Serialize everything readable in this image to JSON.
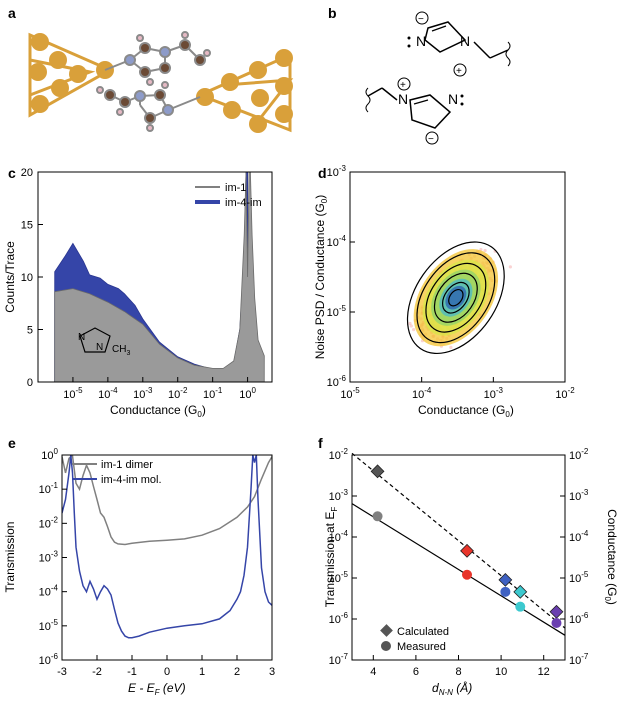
{
  "panels": {
    "a": {
      "label": "a"
    },
    "b": {
      "label": "b"
    },
    "c": {
      "label": "c"
    },
    "d": {
      "label": "d"
    },
    "e": {
      "label": "e"
    },
    "f": {
      "label": "f"
    }
  },
  "colors": {
    "gold": "#d9a03a",
    "carbon": "#6b4a35",
    "nitrogen": "#8d9bc9",
    "hydrogen": "#e6b9c4",
    "grey_fill": "#9a9a9a",
    "blue": "#3545a8",
    "grey_line": "#808080",
    "red": "#e8352b",
    "blue_point": "#3f61c2",
    "cyan": "#3cc9cf",
    "purple": "#6a3fb0",
    "dark_grey": "#555555"
  },
  "chart_data": [
    {
      "panel": "c",
      "type": "area",
      "xlabel": "Conductance (G",
      "xlabel_sub": "0",
      "xlabel_tail": ")",
      "ylabel": "Counts/Trace",
      "x_log": true,
      "xlim": [
        1e-06,
        5
      ],
      "ylim": [
        0,
        20
      ],
      "yticks": [
        "0",
        "5",
        "10",
        "15",
        "20"
      ],
      "xticks": [
        {
          "base": "10",
          "exp": "-5",
          "v": 1e-05
        },
        {
          "base": "10",
          "exp": "-4",
          "v": 0.0001
        },
        {
          "base": "10",
          "exp": "-3",
          "v": 0.001
        },
        {
          "base": "10",
          "exp": "-2",
          "v": 0.01
        },
        {
          "base": "10",
          "exp": "-1",
          "v": 0.1
        },
        {
          "base": "10",
          "exp": "0",
          "v": 1
        }
      ],
      "series": [
        {
          "name": "im-1",
          "color": "#9a9a9a",
          "x": [
            3e-06,
            1e-05,
            3e-05,
            0.0001,
            0.0003,
            0.001,
            0.003,
            0.01,
            0.03,
            0.1,
            0.2,
            0.4,
            0.6,
            0.8,
            0.9,
            1.0,
            1.1,
            1.2,
            1.35,
            1.6,
            2.0,
            3.0
          ],
          "y": [
            8.6,
            8.9,
            8.4,
            7.6,
            6.7,
            5.5,
            3.6,
            2.3,
            1.6,
            1.3,
            1.3,
            2.0,
            5.0,
            14.0,
            20,
            10.0,
            20,
            20,
            14.0,
            8.0,
            4.0,
            2.5
          ]
        },
        {
          "name": "im-4-im",
          "color": "#3545a8",
          "x": [
            3e-06,
            6e-06,
            1e-05,
            2e-05,
            3e-05,
            6e-05,
            0.0001,
            0.0002,
            0.0003,
            0.0006,
            0.001,
            0.003,
            0.01,
            0.03,
            0.1,
            0.2,
            0.3,
            0.4,
            0.6,
            0.8,
            0.9,
            1.0
          ],
          "y": [
            10.5,
            12.0,
            13.2,
            11.5,
            10.2,
            9.9,
            9.3,
            8.9,
            8.4,
            7.3,
            6.0,
            3.8,
            2.4,
            1.7,
            1.2,
            1.1,
            1.2,
            1.8,
            5.0,
            12.0,
            20,
            20
          ]
        }
      ],
      "inset_label": "N",
      "inset_label2": "N",
      "inset_group": "CH",
      "inset_group_sub": "3"
    },
    {
      "panel": "d",
      "type": "heatmap",
      "xlabel": "Conductance (G",
      "xlabel_sub": "0",
      "xlabel_tail": ")",
      "ylabel": "Noise PSD / Conductance (G",
      "ylabel_sub": "0",
      "ylabel_tail": ")",
      "x_log": true,
      "y_log": true,
      "xlim": [
        1e-05,
        0.01
      ],
      "ylim": [
        1e-06,
        0.001
      ],
      "xticks": [
        {
          "base": "10",
          "exp": "-5"
        },
        {
          "base": "10",
          "exp": "-4"
        },
        {
          "base": "10",
          "exp": "-3"
        },
        {
          "base": "10",
          "exp": "-2"
        }
      ],
      "yticks": [
        {
          "base": "10",
          "exp": "-6"
        },
        {
          "base": "10",
          "exp": "-5"
        },
        {
          "base": "10",
          "exp": "-4"
        },
        {
          "base": "10",
          "exp": "-3"
        }
      ],
      "center": [
        0.0003,
        1.6e-05
      ],
      "contour_levels": 5
    },
    {
      "panel": "e",
      "type": "line",
      "xlabel": "E - E",
      "xlabel_sub": "F",
      "xlabel_tail": " (eV)",
      "ylabel": "Transmission",
      "y_log": true,
      "xlim": [
        -3,
        3
      ],
      "ylim": [
        1e-06,
        1
      ],
      "xticks": [
        "-3",
        "-2",
        "-1",
        "0",
        "1",
        "2",
        "3"
      ],
      "yticks": [
        {
          "base": "10",
          "exp": "-6"
        },
        {
          "base": "10",
          "exp": "-5"
        },
        {
          "base": "10",
          "exp": "-4"
        },
        {
          "base": "10",
          "exp": "-3"
        },
        {
          "base": "10",
          "exp": "-2"
        },
        {
          "base": "10",
          "exp": "-1"
        },
        {
          "base": "10",
          "exp": "0"
        }
      ],
      "series": [
        {
          "name": "im-1 dimer",
          "color": "#808080",
          "x": [
            -3.0,
            -2.9,
            -2.8,
            -2.7,
            -2.6,
            -2.5,
            -2.4,
            -2.3,
            -2.2,
            -2.1,
            -2.0,
            -1.9,
            -1.8,
            -1.7,
            -1.6,
            -1.5,
            -1.4,
            -1.2,
            -1.0,
            -0.5,
            0.0,
            0.5,
            1.0,
            1.5,
            2.0,
            2.3,
            2.5,
            2.7,
            2.9,
            3.0
          ],
          "y": [
            0.9,
            0.3,
            0.8,
            0.95,
            0.15,
            0.1,
            0.25,
            0.5,
            0.3,
            0.12,
            0.05,
            0.02,
            0.015,
            0.008,
            0.004,
            0.0028,
            0.0025,
            0.0024,
            0.0026,
            0.003,
            0.0032,
            0.0035,
            0.0045,
            0.007,
            0.015,
            0.03,
            0.06,
            0.2,
            0.6,
            0.9
          ]
        },
        {
          "name": "im-4-im mol.",
          "color": "#3545a8",
          "x": [
            -3.0,
            -2.9,
            -2.8,
            -2.75,
            -2.7,
            -2.65,
            -2.6,
            -2.5,
            -2.4,
            -2.3,
            -2.2,
            -2.1,
            -2.0,
            -1.9,
            -1.8,
            -1.7,
            -1.6,
            -1.5,
            -1.4,
            -1.3,
            -1.2,
            -1.1,
            -1.0,
            -0.8,
            -0.5,
            0.0,
            0.5,
            1.0,
            1.5,
            1.8,
            2.0,
            2.1,
            2.2,
            2.3,
            2.4,
            2.45,
            2.5,
            2.55,
            2.6,
            2.7,
            2.8,
            2.9,
            3.0
          ],
          "y": [
            0.02,
            0.05,
            0.3,
            1.0,
            0.3,
            0.02,
            0.002,
            0.0004,
            0.00015,
            0.0001,
            0.0002,
            0.00012,
            6e-05,
            0.0001,
            0.00015,
            0.00012,
            8e-05,
            3e-05,
            1.2e-05,
            7e-06,
            5e-06,
            4.5e-06,
            4.5e-06,
            5e-06,
            6.5e-06,
            8.5e-06,
            1e-05,
            1.15e-05,
            1.6e-05,
            2.8e-05,
            6e-05,
            0.0001,
            0.0003,
            0.002,
            0.1,
            1.0,
            0.6,
            1.0,
            0.05,
            0.0005,
            0.0001,
            5e-05,
            4e-05
          ]
        }
      ]
    },
    {
      "panel": "f",
      "type": "scatter",
      "xlabel": "d",
      "xlabel_sub": "N-N",
      "xlabel_tail": " (Å)",
      "ylabel_left": "Transmission at E",
      "ylabel_left_sub": "F",
      "ylabel_right": "Conductance (G",
      "ylabel_right_sub": "0",
      "ylabel_right_tail": ")",
      "y_log": true,
      "xlim": [
        3,
        13
      ],
      "ylim": [
        1e-07,
        0.01
      ],
      "xticks": [
        "4",
        "6",
        "8",
        "10",
        "12"
      ],
      "yticks": [
        {
          "base": "10",
          "exp": "-7"
        },
        {
          "base": "10",
          "exp": "-6"
        },
        {
          "base": "10",
          "exp": "-5"
        },
        {
          "base": "10",
          "exp": "-4"
        },
        {
          "base": "10",
          "exp": "-3"
        },
        {
          "base": "10",
          "exp": "-2"
        }
      ],
      "series": [
        {
          "name": "Calculated",
          "marker": "diamond",
          "x": [
            4.2,
            8.4,
            10.2,
            10.9,
            12.6
          ],
          "y": [
            0.004,
            4.6e-05,
            9e-06,
            4.6e-06,
            1.5e-06
          ],
          "colors": [
            "#555555",
            "#e8352b",
            "#3f61c2",
            "#3cc9cf",
            "#6a3fb0"
          ]
        },
        {
          "name": "Measured",
          "marker": "circle",
          "x": [
            4.2,
            8.4,
            10.2,
            10.9,
            12.6
          ],
          "y": [
            0.00032,
            1.2e-05,
            4.6e-06,
            2e-06,
            8e-07
          ],
          "colors": [
            "#808080",
            "#e8352b",
            "#3f61c2",
            "#3cc9cf",
            "#6a3fb0"
          ]
        }
      ],
      "fit_calc": {
        "x": [
          3.0,
          13.0
        ],
        "y": [
          0.011,
          6e-07
        ]
      },
      "fit_meas": {
        "x": [
          3.0,
          13.0
        ],
        "y": [
          0.00065,
          4e-07
        ]
      }
    }
  ],
  "structure_b": {
    "plus": "+",
    "minus": "−",
    "N1": "N",
    "N2": "N",
    "N3": "N",
    "N4": "N"
  }
}
